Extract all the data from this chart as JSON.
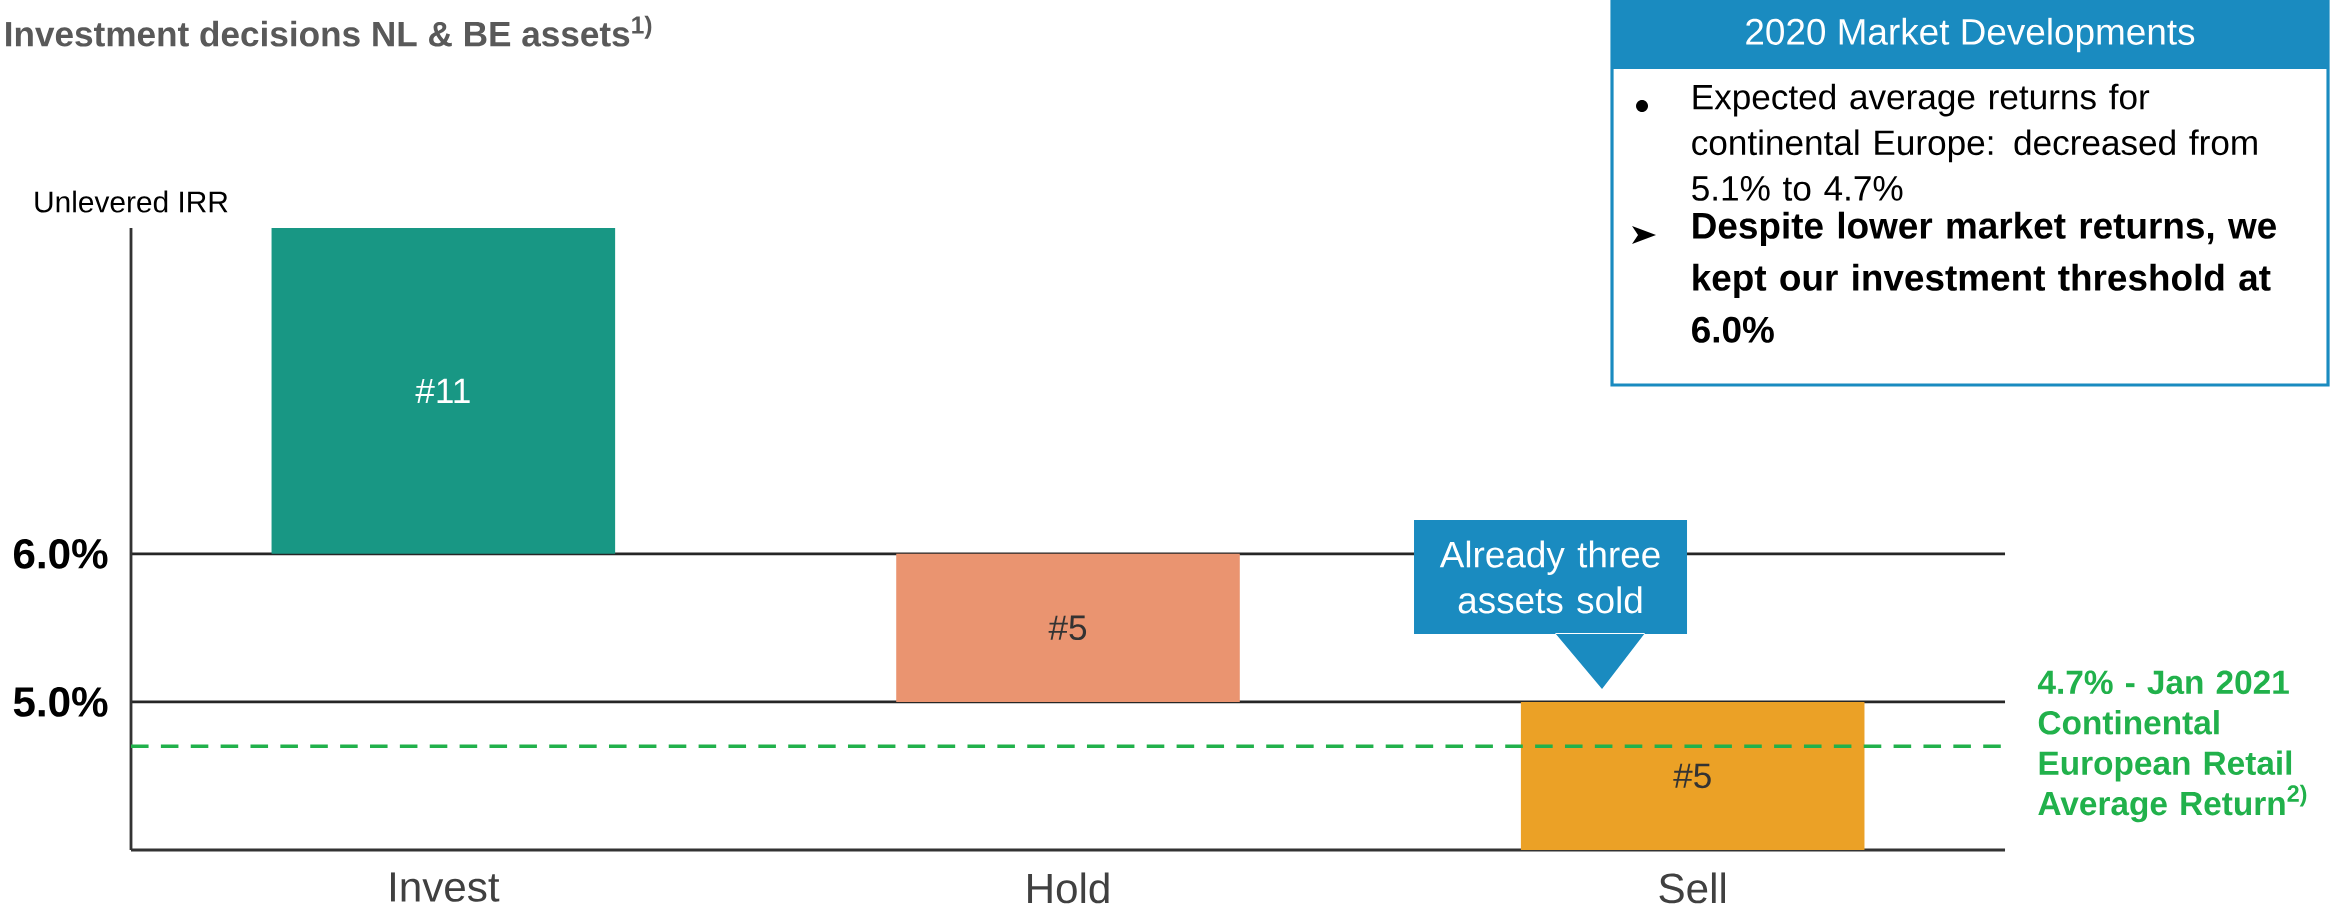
{
  "chart_data": {
    "type": "bar",
    "title": "Investment decisions NL & BE assets$^{1)}$",
    "ylabel": "Unlevered IRR",
    "categories": [
      "Invest",
      "Hold",
      "Sell"
    ],
    "values": [
      2.2,
      1.0,
      1.0
    ],
    "base": [
      6.0,
      5.0,
      4.0
    ],
    "colors": [
      "#189784",
      "#ea9470",
      "#eba126"
    ],
    "ylim": [
      4.0,
      8.2
    ],
    "yticks": [
      {
        "value": 6,
        "label": "6.0%"
      },
      {
        "value": 5,
        "label": "5.0%"
      }
    ],
    "grid": "y",
    "ref_lines": [
      {
        "axis": "y",
        "value": 4.7,
        "label": "4.7% - Jan 2021 Continental European Retail Average Return$^{2)}$",
        "color": "#21b14b",
        "line_style": "dashed"
      }
    ],
    "annotations": [
      "#11",
      "#5",
      "#5",
      "Already three assets sold",
      "2020 Market Developments",
      "Expected average returns for continental Europe: decreased from 5.1% to 4.7%",
      "Despite lower market returns, we kept our investment threshold at 6.0%"
    ]
  }
}
